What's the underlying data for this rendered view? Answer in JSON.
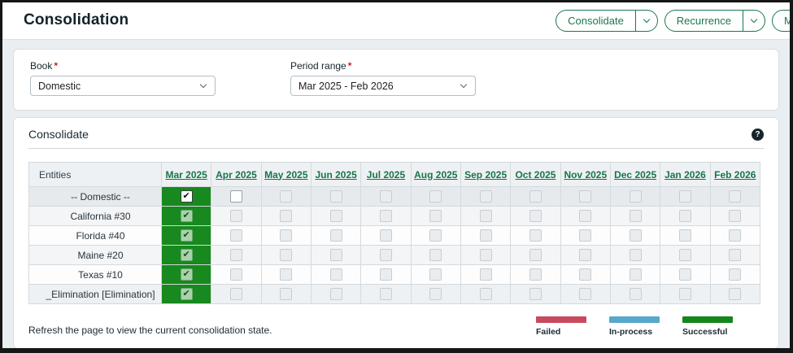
{
  "page": {
    "title": "Consolidation"
  },
  "header": {
    "actions": [
      {
        "label": "Consolidate",
        "name": "consolidate-button",
        "split": true
      },
      {
        "label": "Recurrence",
        "name": "recurrence-button",
        "split": true
      },
      {
        "label": "M",
        "name": "more-button-clipped",
        "split": false
      }
    ]
  },
  "filters": {
    "book": {
      "label": "Book",
      "required_mark": "*",
      "value": "Domestic"
    },
    "period_range": {
      "label": "Period range",
      "required_mark": "*",
      "value": "Mar 2025 - Feb 2026"
    }
  },
  "section": {
    "title": "Consolidate",
    "help_icon": "?"
  },
  "table": {
    "entities_header": "Entities",
    "months": [
      "Mar 2025",
      "Apr 2025",
      "May 2025",
      "Jun 2025",
      "Jul 2025",
      "Aug 2025",
      "Sep 2025",
      "Oct 2025",
      "Nov 2025",
      "Dec 2025",
      "Jan 2026",
      "Feb 2026"
    ],
    "rows": [
      {
        "name": "-- Domestic --",
        "cells": [
          "checked_root",
          "active",
          "disabled",
          "disabled",
          "disabled",
          "disabled",
          "disabled",
          "disabled",
          "disabled",
          "disabled",
          "disabled",
          "disabled"
        ]
      },
      {
        "name": "California #30",
        "cells": [
          "checked",
          "disabled",
          "disabled",
          "disabled",
          "disabled",
          "disabled",
          "disabled",
          "disabled",
          "disabled",
          "disabled",
          "disabled",
          "disabled"
        ]
      },
      {
        "name": "Florida #40",
        "cells": [
          "checked",
          "disabled",
          "disabled",
          "disabled",
          "disabled",
          "disabled",
          "disabled",
          "disabled",
          "disabled",
          "disabled",
          "disabled",
          "disabled"
        ]
      },
      {
        "name": "Maine #20",
        "cells": [
          "checked",
          "disabled",
          "disabled",
          "disabled",
          "disabled",
          "disabled",
          "disabled",
          "disabled",
          "disabled",
          "disabled",
          "disabled",
          "disabled"
        ]
      },
      {
        "name": "Texas #10",
        "cells": [
          "checked",
          "disabled",
          "disabled",
          "disabled",
          "disabled",
          "disabled",
          "disabled",
          "disabled",
          "disabled",
          "disabled",
          "disabled",
          "disabled"
        ]
      },
      {
        "name": "_Elimination [Elimination]",
        "cells": [
          "checked",
          "disabled",
          "disabled",
          "disabled",
          "disabled",
          "disabled",
          "disabled",
          "disabled",
          "disabled",
          "disabled",
          "disabled",
          "disabled"
        ]
      }
    ],
    "check_glyph": "✔"
  },
  "footer": {
    "note": "Refresh the page to view the current consolidation state.",
    "legend": [
      {
        "label": "Failed",
        "color": "#c84a5e"
      },
      {
        "label": "In-process",
        "color": "#58a7cd"
      },
      {
        "label": "Successful",
        "color": "#15861a"
      }
    ]
  },
  "colors": {
    "accent_green": "#1d774b",
    "cell_green": "#17891e",
    "link_green": "#17754a"
  }
}
